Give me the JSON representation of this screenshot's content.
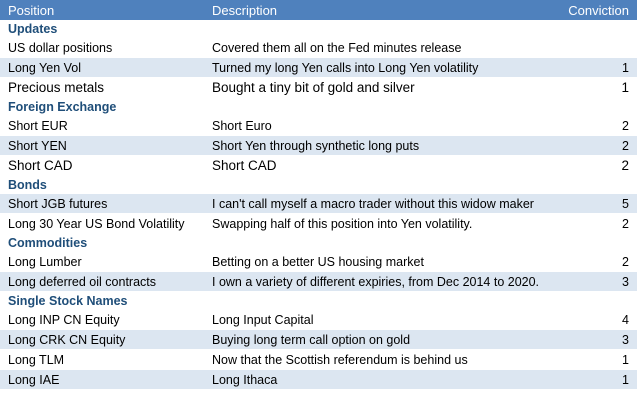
{
  "header": {
    "position": "Position",
    "description": "Description",
    "conviction": "Conviction"
  },
  "sections": [
    {
      "title": "Updates",
      "rows": [
        {
          "position": "US dollar positions",
          "description": "Covered them all on the Fed minutes release",
          "conviction": "",
          "shaded": false,
          "large": false
        },
        {
          "position": "Long Yen Vol",
          "description": "Turned my long Yen calls into Long Yen volatility",
          "conviction": "1",
          "shaded": true,
          "large": false
        },
        {
          "position": "Precious metals",
          "description": "Bought a tiny bit of gold and silver",
          "conviction": "1",
          "shaded": false,
          "large": true
        }
      ]
    },
    {
      "title": "Foreign Exchange",
      "rows": [
        {
          "position": "Short EUR",
          "description": "Short Euro",
          "conviction": "2",
          "shaded": false,
          "large": false
        },
        {
          "position": "Short YEN",
          "description": "Short Yen through synthetic long puts",
          "conviction": "2",
          "shaded": true,
          "large": false
        },
        {
          "position": "Short CAD",
          "description": "Short CAD",
          "conviction": "2",
          "shaded": false,
          "large": true
        }
      ]
    },
    {
      "title": "Bonds",
      "rows": [
        {
          "position": "Short JGB futures",
          "description": "I can't call myself a macro trader without this widow maker",
          "conviction": "5",
          "shaded": true,
          "large": false
        },
        {
          "position": "Long 30 Year US Bond Volatility",
          "description": "Swapping half of this position into Yen volatility.",
          "conviction": "2",
          "shaded": false,
          "large": false
        }
      ]
    },
    {
      "title": "Commodities",
      "rows": [
        {
          "position": "Long Lumber",
          "description": "Betting on a better US housing market",
          "conviction": "2",
          "shaded": false,
          "large": false
        },
        {
          "position": "Long deferred oil contracts",
          "description": "I own a variety of different expiries, from Dec 2014 to 2020.",
          "conviction": "3",
          "shaded": true,
          "large": false
        }
      ]
    },
    {
      "title": "Single Stock Names",
      "rows": [
        {
          "position": "Long INP CN Equity",
          "description": "Long Input Capital",
          "conviction": "4",
          "shaded": false,
          "large": false
        },
        {
          "position": "Long CRK CN Equity",
          "description": "Buying long term call option on gold",
          "conviction": "3",
          "shaded": true,
          "large": false
        },
        {
          "position": "Long TLM",
          "description": "Now that the Scottish referendum is behind us",
          "conviction": "1",
          "shaded": false,
          "large": false
        },
        {
          "position": "Long IAE",
          "description": "Long Ithaca",
          "conviction": "1",
          "shaded": true,
          "large": false
        }
      ]
    }
  ],
  "colors": {
    "header_bg": "#4f81bd",
    "header_text": "#ffffff",
    "section_text": "#1f4e79",
    "shaded_row": "#dce6f1"
  }
}
